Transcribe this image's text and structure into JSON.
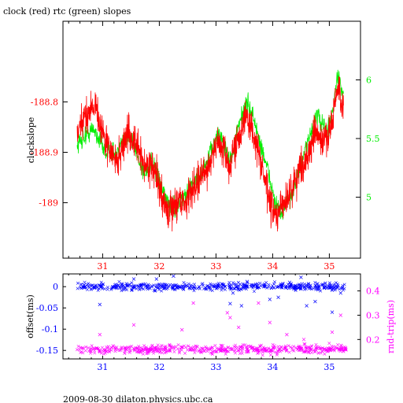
{
  "title": "clock (red) rtc (green) slopes",
  "footer": "2009-08-30  dilaton.physics.ubc.ca",
  "colors": {
    "red": "#ff0000",
    "green": "#00ee00",
    "blue": "#0000ff",
    "magenta": "#ff00ff",
    "axis": "#000000"
  },
  "chart_data": [
    {
      "type": "line",
      "title": "clock (red) rtc (green) slopes",
      "xlim": [
        30.3,
        35.55
      ],
      "x_ticks": [
        "31",
        "32",
        "33",
        "34",
        "35"
      ],
      "x_tick_values": [
        31,
        32,
        33,
        34,
        35
      ],
      "y_left": {
        "label": "clockslope",
        "lim": [
          -189.11,
          -188.64
        ],
        "ticks": [
          "-188.8",
          "-188.9",
          "-189"
        ],
        "tick_values": [
          -188.8,
          -188.9,
          -189.0
        ]
      },
      "y_right": {
        "label": "",
        "lim": [
          4.48,
          6.5
        ],
        "ticks": [
          "6",
          "5.5",
          "5"
        ],
        "tick_values": [
          6,
          5.5,
          5
        ]
      },
      "series": [
        {
          "name": "clock (red)",
          "axis": "left",
          "x": [
            30.55,
            30.65,
            30.75,
            30.85,
            30.95,
            31.05,
            31.15,
            31.25,
            31.35,
            31.45,
            31.55,
            31.65,
            31.75,
            31.85,
            31.95,
            32.05,
            32.15,
            32.25,
            32.35,
            32.45,
            32.55,
            32.65,
            32.75,
            32.85,
            32.95,
            33.05,
            33.15,
            33.25,
            33.35,
            33.45,
            33.55,
            33.65,
            33.75,
            33.85,
            33.95,
            34.05,
            34.15,
            34.25,
            34.35,
            34.45,
            34.55,
            34.65,
            34.75,
            34.85,
            34.95,
            35.05,
            35.15,
            35.25
          ],
          "values": [
            -188.87,
            -188.84,
            -188.82,
            -188.8,
            -188.84,
            -188.88,
            -188.9,
            -188.92,
            -188.89,
            -188.86,
            -188.88,
            -188.9,
            -188.93,
            -188.92,
            -188.95,
            -188.99,
            -189.02,
            -189.01,
            -188.99,
            -189.0,
            -188.98,
            -188.96,
            -188.95,
            -188.93,
            -188.9,
            -188.88,
            -188.9,
            -188.93,
            -188.88,
            -188.85,
            -188.83,
            -188.86,
            -188.9,
            -188.95,
            -189.0,
            -189.03,
            -189.01,
            -188.99,
            -188.97,
            -188.94,
            -188.92,
            -188.9,
            -188.86,
            -188.88,
            -188.87,
            -188.84,
            -188.77,
            -188.82
          ],
          "noise": 0.024
        },
        {
          "name": "rtc (green)",
          "axis": "right",
          "x": [
            30.55,
            30.65,
            30.75,
            30.85,
            30.95,
            31.05,
            31.15,
            31.25,
            31.35,
            31.45,
            31.55,
            31.65,
            31.75,
            31.85,
            31.95,
            32.05,
            32.15,
            32.25,
            32.35,
            32.45,
            32.55,
            32.65,
            32.75,
            32.85,
            32.95,
            33.05,
            33.15,
            33.25,
            33.35,
            33.45,
            33.55,
            33.65,
            33.75,
            33.85,
            33.95,
            34.05,
            34.15,
            34.25,
            34.35,
            34.45,
            34.55,
            34.65,
            34.75,
            34.85,
            34.95,
            35.05,
            35.15,
            35.25
          ],
          "values": [
            5.45,
            5.5,
            5.55,
            5.58,
            5.48,
            5.38,
            5.4,
            5.36,
            5.45,
            5.55,
            5.45,
            5.3,
            5.2,
            5.3,
            5.2,
            5.05,
            4.95,
            4.9,
            4.95,
            5.0,
            5.1,
            5.15,
            5.2,
            5.3,
            5.45,
            5.55,
            5.45,
            5.3,
            5.5,
            5.7,
            5.8,
            5.7,
            5.5,
            5.35,
            5.15,
            4.95,
            4.85,
            4.95,
            5.05,
            5.2,
            5.35,
            5.5,
            5.7,
            5.65,
            5.55,
            5.7,
            6.05,
            5.85
          ],
          "noise": 0.06
        }
      ]
    },
    {
      "type": "scatter",
      "xlim": [
        30.3,
        35.55
      ],
      "x_ticks": [
        "31",
        "32",
        "33",
        "34",
        "35"
      ],
      "x_tick_values": [
        31,
        32,
        33,
        34,
        35
      ],
      "y_left": {
        "label": "offset(ms)",
        "lim": [
          -0.17,
          0.03
        ],
        "ticks": [
          "0",
          "-0.05",
          "-0.1",
          "-0.15"
        ],
        "tick_values": [
          0,
          -0.05,
          -0.1,
          -0.15
        ]
      },
      "y_right": {
        "label": "rnd-trip(ms)",
        "lim": [
          0.12,
          0.47
        ],
        "ticks": [
          "0.4",
          "0.3",
          "0.2"
        ],
        "tick_values": [
          0.4,
          0.3,
          0.2
        ]
      },
      "series": [
        {
          "name": "offset",
          "axis": "left",
          "x_range": [
            30.55,
            35.3
          ],
          "baseline": 0.0,
          "spread": 0.006,
          "outliers": [
            [
              30.95,
              -0.042
            ],
            [
              31.55,
              0.018
            ],
            [
              31.95,
              0.018
            ],
            [
              32.25,
              0.025
            ],
            [
              33.25,
              -0.04
            ],
            [
              33.3,
              -0.015
            ],
            [
              33.45,
              -0.045
            ],
            [
              33.55,
              0.012
            ],
            [
              33.95,
              -0.03
            ],
            [
              34.1,
              -0.025
            ],
            [
              34.3,
              0.01
            ],
            [
              34.5,
              0.022
            ],
            [
              34.6,
              -0.045
            ],
            [
              34.75,
              -0.035
            ],
            [
              35.05,
              -0.06
            ],
            [
              35.2,
              -0.015
            ]
          ]
        },
        {
          "name": "rnd-trip",
          "axis": "right",
          "x_range": [
            30.55,
            35.3
          ],
          "baseline": 0.16,
          "spread": 0.012,
          "outliers": [
            [
              30.95,
              0.22
            ],
            [
              31.55,
              0.26
            ],
            [
              32.4,
              0.24
            ],
            [
              32.6,
              0.35
            ],
            [
              33.2,
              0.31
            ],
            [
              33.25,
              0.29
            ],
            [
              33.4,
              0.25
            ],
            [
              33.75,
              0.35
            ],
            [
              33.95,
              0.27
            ],
            [
              34.25,
              0.22
            ],
            [
              34.55,
              0.2
            ],
            [
              35.05,
              0.23
            ],
            [
              35.2,
              0.3
            ]
          ]
        }
      ]
    }
  ]
}
